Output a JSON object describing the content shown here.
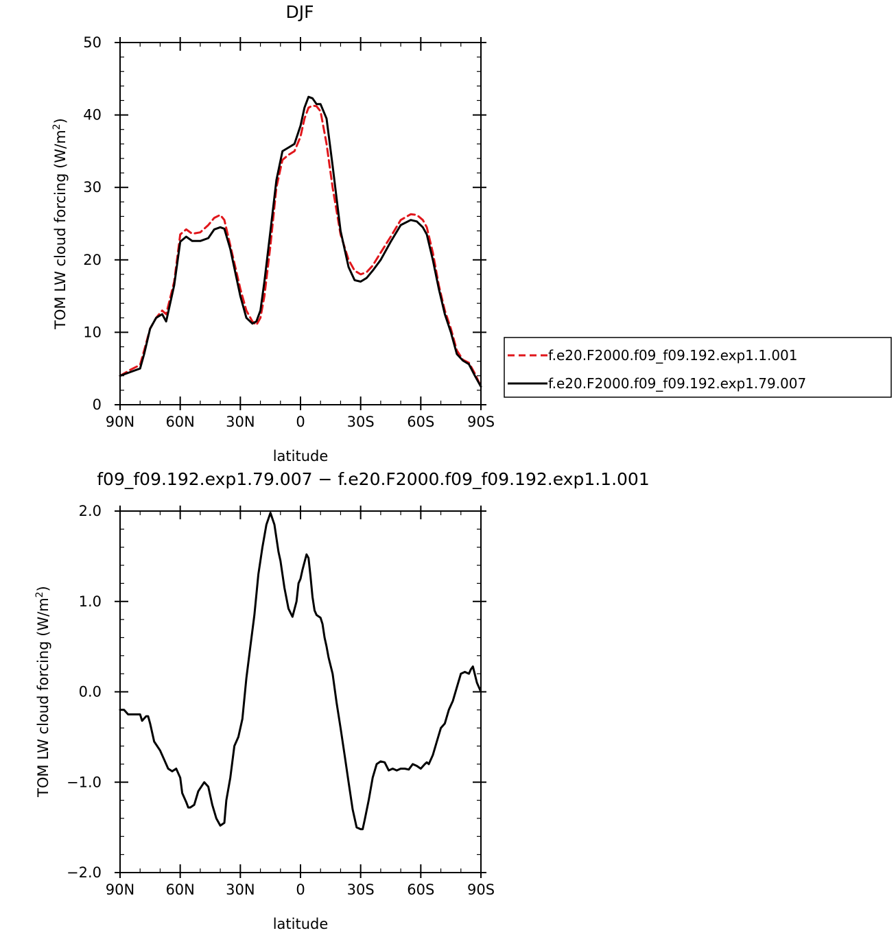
{
  "chart_data": [
    {
      "type": "line",
      "title": "DJF",
      "xlabel": "latitude",
      "ylabel_main": "TOM LW cloud forcing (W/m",
      "ylabel_sup": "2",
      "ylabel_close": ")",
      "xlim": [
        90,
        -90
      ],
      "ylim": [
        0,
        50
      ],
      "x_ticks": [
        {
          "value": 90,
          "label": "90N"
        },
        {
          "value": 60,
          "label": "60N"
        },
        {
          "value": 30,
          "label": "30N"
        },
        {
          "value": 0,
          "label": "0"
        },
        {
          "value": -30,
          "label": "30S"
        },
        {
          "value": -60,
          "label": "60S"
        },
        {
          "value": -90,
          "label": "90S"
        }
      ],
      "y_ticks": [
        {
          "value": 0,
          "label": "0"
        },
        {
          "value": 10,
          "label": "10"
        },
        {
          "value": 20,
          "label": "20"
        },
        {
          "value": 30,
          "label": "30"
        },
        {
          "value": 40,
          "label": "40"
        },
        {
          "value": 50,
          "label": "50"
        }
      ],
      "legend_position": "right",
      "series": [
        {
          "name": "f.e20.F2000.f09_f09.192.exp1.1.001",
          "color": "#e0161b",
          "dash": "dashed",
          "x": [
            90,
            85,
            80,
            78,
            75,
            72,
            69,
            67,
            63,
            60,
            57,
            54,
            50,
            46,
            43,
            40,
            38,
            35,
            30,
            27,
            24,
            22,
            20,
            18,
            15,
            12,
            9,
            6,
            3,
            0,
            -2,
            -4,
            -6,
            -8,
            -10,
            -13,
            -16,
            -20,
            -24,
            -27,
            -30,
            -33,
            -36,
            -40,
            -45,
            -50,
            -55,
            -58,
            -61,
            -63,
            -66,
            -69,
            -72,
            -75,
            -78,
            -81,
            -84,
            -87,
            -90
          ],
          "values": [
            4,
            4.8,
            5.5,
            7.5,
            10.5,
            12,
            13,
            12.5,
            17,
            23.5,
            24.2,
            23.6,
            23.8,
            24.8,
            25.8,
            26.2,
            25.5,
            22,
            16,
            13,
            11.5,
            11,
            12,
            15,
            22,
            30,
            33.8,
            34.5,
            35,
            37,
            39.5,
            41,
            41.3,
            41.2,
            40.5,
            36,
            30,
            23.5,
            20,
            18.5,
            18,
            18.3,
            19.2,
            21,
            23.2,
            25.5,
            26.3,
            26.2,
            25.5,
            24.5,
            21,
            16.5,
            13,
            10.5,
            7.5,
            6.2,
            5.8,
            4.3,
            2.5
          ]
        },
        {
          "name": "f.e20.F2000.f09_f09.192.exp1.79.007",
          "color": "#000000",
          "dash": "solid",
          "x": [
            90,
            85,
            80,
            78,
            75,
            72,
            69,
            67,
            63,
            60,
            57,
            54,
            50,
            46,
            43,
            40,
            38,
            35,
            30,
            27,
            24,
            22,
            20,
            18,
            15,
            12,
            9,
            6,
            3,
            0,
            -2,
            -4,
            -6,
            -8,
            -10,
            -13,
            -16,
            -20,
            -24,
            -27,
            -30,
            -33,
            -36,
            -40,
            -45,
            -50,
            -55,
            -58,
            -61,
            -63,
            -66,
            -69,
            -72,
            -75,
            -78,
            -81,
            -84,
            -87,
            -90
          ],
          "values": [
            4,
            4.5,
            5,
            7,
            10.5,
            12,
            12.5,
            11.5,
            16.5,
            22.5,
            23.2,
            22.6,
            22.6,
            23,
            24.2,
            24.5,
            24.3,
            21.5,
            15,
            12,
            11.2,
            11.5,
            13,
            17,
            24,
            31,
            35,
            35.5,
            36,
            38.5,
            41,
            42.5,
            42.3,
            41.5,
            41.5,
            39.5,
            33,
            24,
            19,
            17.2,
            17,
            17.5,
            18.5,
            20,
            22.5,
            24.8,
            25.5,
            25.3,
            24.5,
            23.5,
            20,
            16,
            12.5,
            10,
            7,
            6.1,
            5.6,
            4,
            2.5
          ]
        }
      ]
    },
    {
      "type": "line",
      "title": "f09_f09.192.exp1.79.007 − f.e20.F2000.f09_f09.192.exp1.1.001",
      "xlabel": "latitude",
      "ylabel_main": "TOM LW cloud forcing (W/m",
      "ylabel_sup": "2",
      "ylabel_close": ")",
      "xlim": [
        90,
        -90
      ],
      "ylim": [
        -2.0,
        2.0
      ],
      "x_ticks": [
        {
          "value": 90,
          "label": "90N"
        },
        {
          "value": 60,
          "label": "60N"
        },
        {
          "value": 30,
          "label": "30N"
        },
        {
          "value": 0,
          "label": "0"
        },
        {
          "value": -30,
          "label": "30S"
        },
        {
          "value": -60,
          "label": "60S"
        },
        {
          "value": -90,
          "label": "90S"
        }
      ],
      "y_ticks": [
        {
          "value": -2.0,
          "label": "−2.0"
        },
        {
          "value": -1.0,
          "label": "−1.0"
        },
        {
          "value": 0.0,
          "label": "0.0"
        },
        {
          "value": 1.0,
          "label": "1.0"
        },
        {
          "value": 2.0,
          "label": "2.0"
        }
      ],
      "series": [
        {
          "color": "#000000",
          "dash": "solid",
          "x": [
            90,
            88,
            86,
            84,
            82,
            80,
            79,
            77,
            76,
            75,
            73,
            70,
            68,
            66,
            64,
            62,
            60,
            59,
            57,
            56,
            55,
            53,
            51,
            48,
            46,
            44,
            42,
            40,
            38,
            37,
            35,
            33,
            31,
            29,
            27,
            25,
            23,
            21,
            19,
            17,
            15,
            13,
            11,
            10,
            9,
            8,
            6,
            4,
            2,
            1,
            0,
            -1,
            -3,
            -4,
            -5,
            -6,
            -7,
            -8,
            -10,
            -11,
            -12,
            -13,
            -14,
            -16,
            -18,
            -20,
            -22,
            -24,
            -26,
            -28,
            -30,
            -31,
            -32,
            -34,
            -36,
            -38,
            -40,
            -42,
            -44,
            -46,
            -48,
            -50,
            -52,
            -54,
            -56,
            -58,
            -60,
            -62,
            -63,
            -64,
            -66,
            -68,
            -70,
            -72,
            -74,
            -76,
            -78,
            -80,
            -82,
            -84,
            -85,
            -86,
            -88,
            -90
          ],
          "values": [
            -0.2,
            -0.2,
            -0.25,
            -0.25,
            -0.25,
            -0.25,
            -0.32,
            -0.27,
            -0.27,
            -0.35,
            -0.55,
            -0.65,
            -0.75,
            -0.85,
            -0.88,
            -0.85,
            -0.95,
            -1.12,
            -1.22,
            -1.28,
            -1.28,
            -1.25,
            -1.1,
            -1.0,
            -1.05,
            -1.25,
            -1.4,
            -1.48,
            -1.45,
            -1.2,
            -0.95,
            -0.6,
            -0.5,
            -0.3,
            0.15,
            0.5,
            0.85,
            1.3,
            1.6,
            1.85,
            1.98,
            1.85,
            1.55,
            1.45,
            1.3,
            1.15,
            0.92,
            0.83,
            1.0,
            1.2,
            1.25,
            1.35,
            1.52,
            1.48,
            1.28,
            1.05,
            0.9,
            0.85,
            0.82,
            0.75,
            0.6,
            0.5,
            0.38,
            0.2,
            -0.12,
            -0.4,
            -0.7,
            -1.0,
            -1.3,
            -1.5,
            -1.52,
            -1.52,
            -1.42,
            -1.2,
            -0.95,
            -0.8,
            -0.77,
            -0.78,
            -0.87,
            -0.85,
            -0.87,
            -0.85,
            -0.85,
            -0.86,
            -0.8,
            -0.82,
            -0.85,
            -0.8,
            -0.78,
            -0.8,
            -0.7,
            -0.55,
            -0.4,
            -0.35,
            -0.2,
            -0.1,
            0.05,
            0.2,
            0.22,
            0.2,
            0.25,
            0.28,
            0.1,
            0.0
          ]
        }
      ]
    }
  ]
}
